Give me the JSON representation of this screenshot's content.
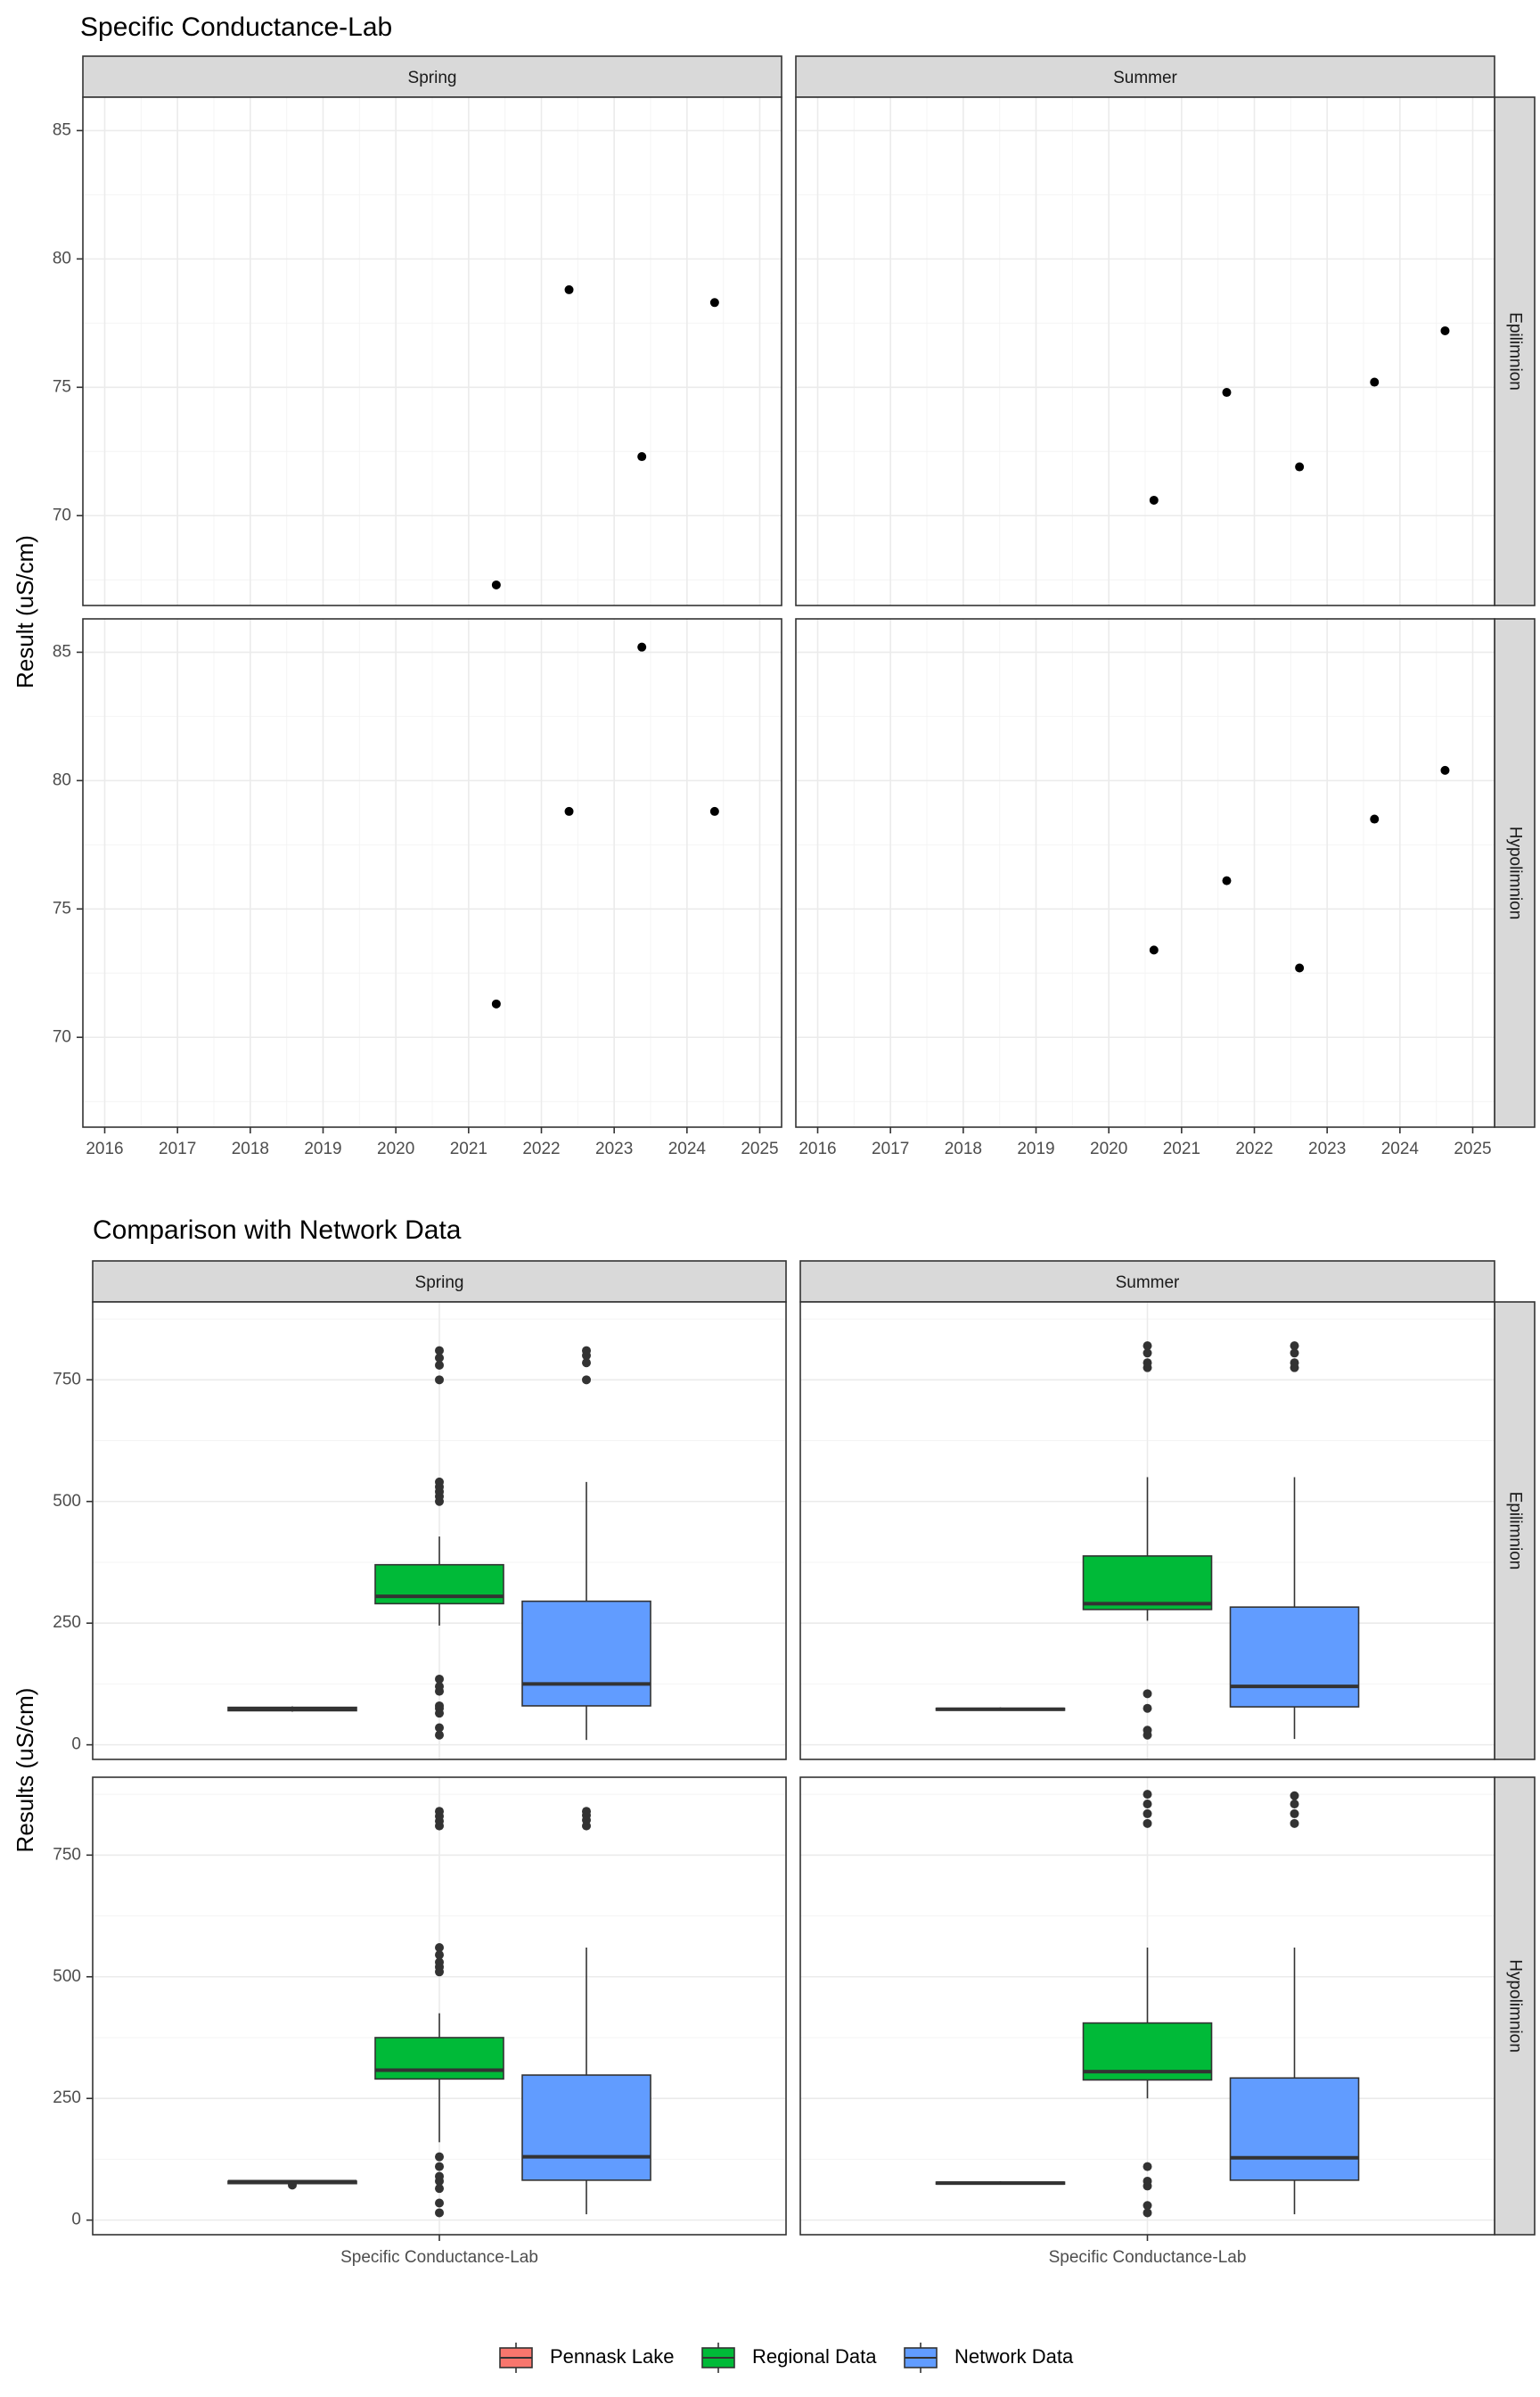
{
  "chart_data": [
    {
      "type": "scatter",
      "title": "Specific Conductance-Lab",
      "ylabel": "Result (uS/cm)",
      "xlabel": "",
      "columns": [
        "Spring",
        "Summer"
      ],
      "rows": [
        "Epilimnion",
        "Hypolimnion"
      ],
      "x_ticks": [
        "2016",
        "2017",
        "2018",
        "2019",
        "2020",
        "2021",
        "2022",
        "2023",
        "2024",
        "2025"
      ],
      "y_ticks": [
        "70",
        "75",
        "80",
        "85"
      ],
      "xlim": [
        2015.7,
        2025.3
      ],
      "ylim": [
        66.5,
        86.3
      ],
      "grid": true,
      "panels": [
        {
          "column": "Spring",
          "row": "Epilimnion",
          "points": [
            {
              "x": 2021.38,
              "y": 67.3
            },
            {
              "x": 2022.38,
              "y": 78.8
            },
            {
              "x": 2023.38,
              "y": 72.3
            },
            {
              "x": 2024.38,
              "y": 78.3
            }
          ]
        },
        {
          "column": "Summer",
          "row": "Epilimnion",
          "points": [
            {
              "x": 2020.62,
              "y": 70.6
            },
            {
              "x": 2021.62,
              "y": 74.8
            },
            {
              "x": 2022.62,
              "y": 71.9
            },
            {
              "x": 2023.65,
              "y": 75.2
            },
            {
              "x": 2024.62,
              "y": 77.2
            }
          ]
        },
        {
          "column": "Spring",
          "row": "Hypolimnion",
          "points": [
            {
              "x": 2021.38,
              "y": 71.3
            },
            {
              "x": 2022.38,
              "y": 78.8
            },
            {
              "x": 2023.38,
              "y": 85.2
            },
            {
              "x": 2024.38,
              "y": 78.8
            }
          ]
        },
        {
          "column": "Summer",
          "row": "Hypolimnion",
          "points": [
            {
              "x": 2020.62,
              "y": 73.4
            },
            {
              "x": 2021.62,
              "y": 76.1
            },
            {
              "x": 2022.62,
              "y": 72.7
            },
            {
              "x": 2023.65,
              "y": 78.5
            },
            {
              "x": 2024.62,
              "y": 80.4
            }
          ]
        }
      ]
    },
    {
      "type": "box",
      "title": "Comparison with Network Data",
      "ylabel": "Results (uS/cm)",
      "xlabel": "",
      "x_tick": "Specific Conductance-Lab",
      "columns": [
        "Spring",
        "Summer"
      ],
      "rows": [
        "Epilimnion",
        "Hypolimnion"
      ],
      "y_ticks": [
        "0",
        "250",
        "500",
        "750"
      ],
      "ylim": [
        -30,
        910
      ],
      "legend": {
        "position": "bottom",
        "entries": [
          {
            "name": "Pennask Lake",
            "color": "#F8766D"
          },
          {
            "name": "Regional Data",
            "color": "#00BA38"
          },
          {
            "name": "Network Data",
            "color": "#619CFF"
          }
        ]
      },
      "panels": [
        {
          "column": "Spring",
          "row": "Epilimnion",
          "boxes": [
            {
              "series": "Pennask Lake",
              "min": 68,
              "q1": 70,
              "median": 74,
              "q3": 77,
              "max": 79,
              "outliers": []
            },
            {
              "series": "Regional Data",
              "min": 245,
              "q1": 290,
              "median": 305,
              "q3": 370,
              "max": 428,
              "outliers": [
                20,
                35,
                65,
                75,
                80,
                110,
                120,
                135,
                500,
                510,
                520,
                530,
                540,
                750,
                780,
                795,
                810
              ]
            },
            {
              "series": "Network Data",
              "min": 10,
              "q1": 80,
              "median": 125,
              "q3": 295,
              "max": 540,
              "outliers": [
                750,
                785,
                800,
                810
              ]
            }
          ]
        },
        {
          "column": "Summer",
          "row": "Epilimnion",
          "boxes": [
            {
              "series": "Pennask Lake",
              "min": 70,
              "q1": 71,
              "median": 73,
              "q3": 75,
              "max": 77,
              "outliers": []
            },
            {
              "series": "Regional Data",
              "min": 255,
              "q1": 278,
              "median": 290,
              "q3": 388,
              "max": 550,
              "outliers": [
                20,
                30,
                75,
                105,
                775,
                785,
                805,
                820
              ]
            },
            {
              "series": "Network Data",
              "min": 12,
              "q1": 78,
              "median": 120,
              "q3": 283,
              "max": 550,
              "outliers": [
                775,
                785,
                805,
                820
              ]
            }
          ]
        },
        {
          "column": "Spring",
          "row": "Hypolimnion",
          "boxes": [
            {
              "series": "Pennask Lake",
              "min": 71,
              "q1": 75,
              "median": 79,
              "q3": 80,
              "max": 81,
              "outliers": [
                72
              ]
            },
            {
              "series": "Regional Data",
              "min": 160,
              "q1": 290,
              "median": 308,
              "q3": 375,
              "max": 425,
              "outliers": [
                15,
                35,
                65,
                80,
                90,
                110,
                130,
                510,
                520,
                530,
                545,
                560,
                810,
                820,
                830,
                840
              ]
            },
            {
              "series": "Network Data",
              "min": 12,
              "q1": 82,
              "median": 130,
              "q3": 298,
              "max": 560,
              "outliers": [
                810,
                822,
                832,
                840
              ]
            }
          ]
        },
        {
          "column": "Summer",
          "row": "Hypolimnion",
          "boxes": [
            {
              "series": "Pennask Lake",
              "min": 73,
              "q1": 74,
              "median": 76,
              "q3": 78,
              "max": 80,
              "outliers": []
            },
            {
              "series": "Regional Data",
              "min": 250,
              "q1": 288,
              "median": 305,
              "q3": 405,
              "max": 560,
              "outliers": [
                15,
                30,
                70,
                80,
                110,
                815,
                835,
                855,
                875
              ]
            },
            {
              "series": "Network Data",
              "min": 12,
              "q1": 82,
              "median": 128,
              "q3": 292,
              "max": 560,
              "outliers": [
                815,
                835,
                855,
                872
              ]
            }
          ]
        }
      ]
    }
  ]
}
